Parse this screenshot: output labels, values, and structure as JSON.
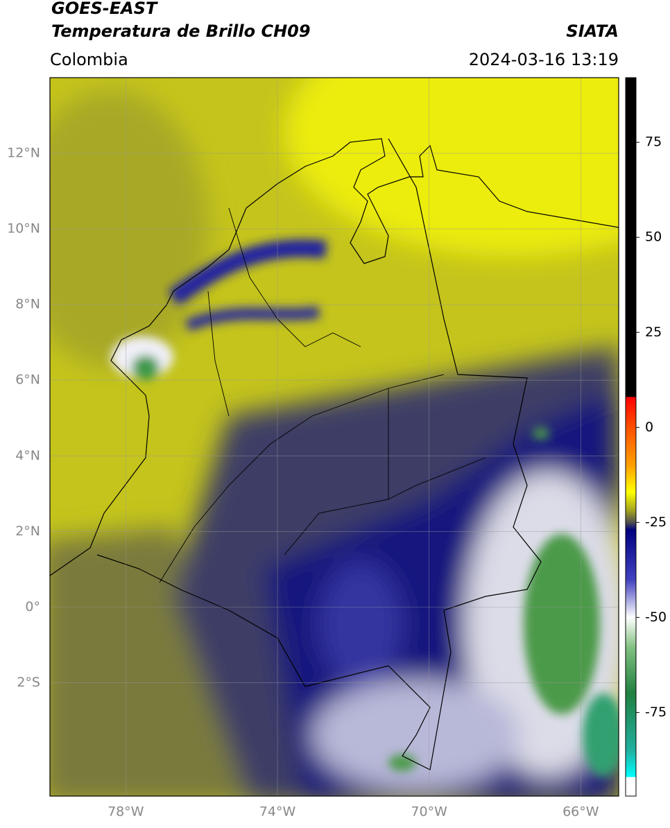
{
  "header": {
    "title": "GOES-EAST",
    "subtitle": "Temperatura de Brillo CH09",
    "region": "Colombia",
    "source": "SIATA",
    "datetime": "2024-03-16 13:19"
  },
  "map": {
    "xlim": [
      -80,
      -65
    ],
    "ylim": [
      -5,
      14
    ],
    "xticks": [
      {
        "value": -78,
        "label": "78°W"
      },
      {
        "value": -74,
        "label": "74°W"
      },
      {
        "value": -70,
        "label": "70°W"
      },
      {
        "value": -66,
        "label": "66°W"
      }
    ],
    "yticks": [
      {
        "value": 12,
        "label": "12°N"
      },
      {
        "value": 10,
        "label": "10°N"
      },
      {
        "value": 8,
        "label": "8°N"
      },
      {
        "value": 6,
        "label": "6°N"
      },
      {
        "value": 4,
        "label": "4°N"
      },
      {
        "value": 2,
        "label": "2°N"
      },
      {
        "value": 0,
        "label": "0°"
      },
      {
        "value": -2,
        "label": "2°S"
      }
    ],
    "grid": true
  },
  "colorbar": {
    "clim": [
      -97,
      92
    ],
    "ticks": [
      75,
      50,
      25,
      0,
      -25,
      -50,
      -75
    ],
    "colormap": [
      {
        "value": 92,
        "color": "#000000"
      },
      {
        "value": 8,
        "color": "#000000"
      },
      {
        "value": 8,
        "color": "#ff0000"
      },
      {
        "value": 0,
        "color": "#ff5000"
      },
      {
        "value": -10,
        "color": "#ffa000"
      },
      {
        "value": -17,
        "color": "#ffff00"
      },
      {
        "value": -22,
        "color": "#a0a020"
      },
      {
        "value": -25,
        "color": "#505050"
      },
      {
        "value": -27,
        "color": "#000080"
      },
      {
        "value": -40,
        "color": "#4040c0"
      },
      {
        "value": -50,
        "color": "#ffffff"
      },
      {
        "value": -58,
        "color": "#80c080"
      },
      {
        "value": -70,
        "color": "#208040"
      },
      {
        "value": -85,
        "color": "#20b0a0"
      },
      {
        "value": -92,
        "color": "#00ffff"
      },
      {
        "value": -92,
        "color": "#ffffff"
      },
      {
        "value": -97,
        "color": "#ffffff"
      }
    ]
  }
}
